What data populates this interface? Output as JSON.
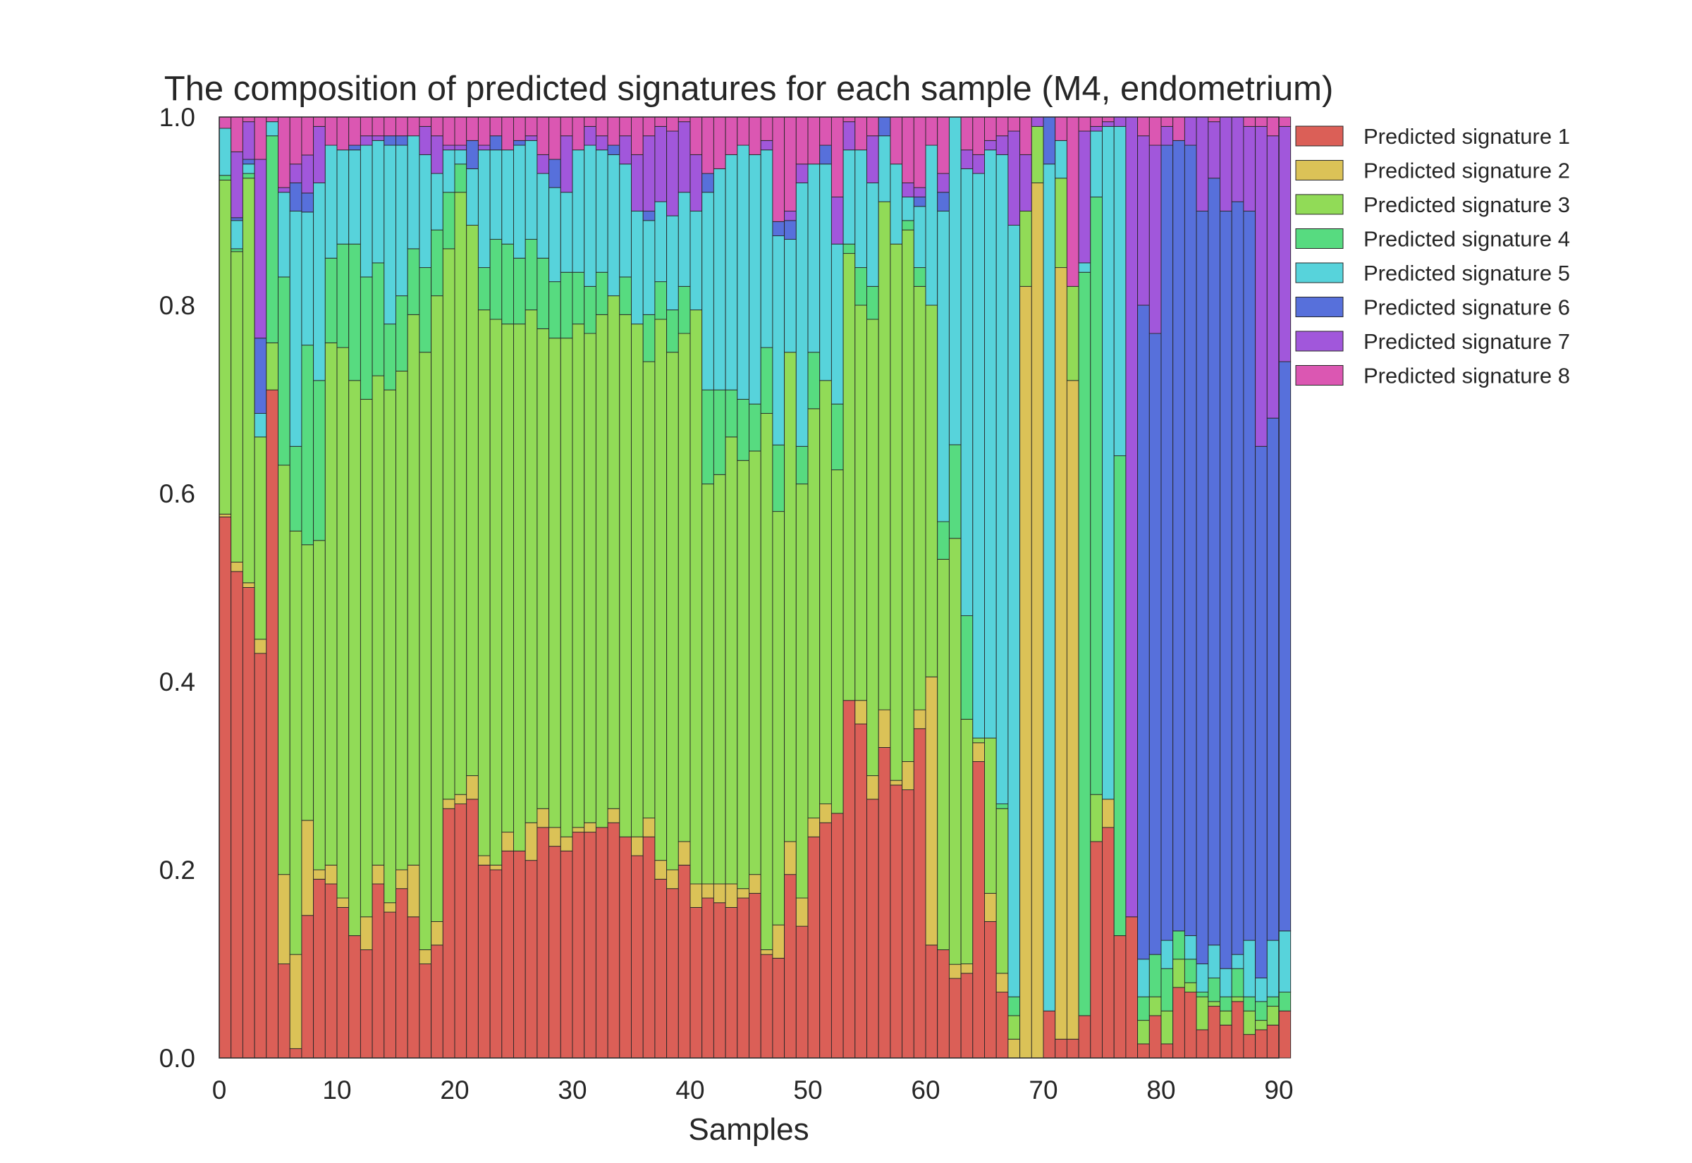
{
  "chart_data": {
    "type": "bar",
    "stacked": true,
    "normalized": true,
    "title": "The composition of predicted signatures for each sample (M4, endometrium)",
    "xlabel": "Samples",
    "ylabel": "",
    "xlim": [
      0,
      90
    ],
    "ylim": [
      0,
      1
    ],
    "xticks": [
      "0",
      "10",
      "20",
      "30",
      "40",
      "50",
      "60",
      "70",
      "80",
      "90"
    ],
    "yticks": [
      "0.0",
      "0.2",
      "0.4",
      "0.6",
      "0.8",
      "1.0"
    ],
    "grid": false,
    "legend_position": "outside-top-right",
    "series": [
      {
        "name": "Predicted signature 1",
        "color": "#db5f57"
      },
      {
        "name": "Predicted signature 2",
        "color": "#dbc257"
      },
      {
        "name": "Predicted signature 3",
        "color": "#91db57"
      },
      {
        "name": "Predicted signature 4",
        "color": "#57db80"
      },
      {
        "name": "Predicted signature 5",
        "color": "#57d3db"
      },
      {
        "name": "Predicted signature 6",
        "color": "#5770db"
      },
      {
        "name": "Predicted signature 7",
        "color": "#a157db"
      },
      {
        "name": "Predicted signature 8",
        "color": "#db57b2"
      }
    ],
    "samples": [
      [
        0.575,
        0.003,
        0.355,
        0.005,
        0.05,
        0,
        0,
        0.012
      ],
      [
        0.517,
        0.01,
        0.33,
        0.003,
        0.03,
        0.003,
        0.07,
        0.037
      ],
      [
        0.5,
        0.005,
        0.43,
        0.005,
        0.01,
        0.005,
        0.04,
        0.005
      ],
      [
        0.43,
        0.015,
        0.215,
        0.0,
        0.025,
        0.08,
        0.19,
        0.045
      ],
      [
        0.71,
        0,
        0.05,
        0.22,
        0.015,
        0,
        0,
        0.005
      ],
      [
        0.1,
        0.095,
        0.435,
        0.2,
        0.09,
        0.0,
        0.005,
        0.075
      ],
      [
        0.01,
        0.1,
        0.45,
        0.09,
        0.25,
        0.03,
        0.02,
        0.05
      ],
      [
        0.15,
        0.1,
        0.29,
        0.21,
        0.14,
        0.02,
        0.04,
        0.04
      ],
      [
        0.19,
        0.01,
        0.35,
        0.17,
        0.21,
        0.0,
        0.06,
        0.01
      ],
      [
        0.185,
        0.02,
        0.555,
        0.09,
        0.12,
        0.0,
        0.0,
        0.03
      ],
      [
        0.16,
        0.01,
        0.585,
        0.11,
        0.1,
        0.0,
        0.0,
        0.035
      ],
      [
        0.13,
        0.0,
        0.59,
        0.145,
        0.1,
        0.005,
        0.0,
        0.03
      ],
      [
        0.115,
        0.035,
        0.55,
        0.13,
        0.14,
        0.0,
        0.01,
        0.02
      ],
      [
        0.185,
        0.02,
        0.52,
        0.12,
        0.13,
        0.0,
        0.005,
        0.02
      ],
      [
        0.155,
        0.01,
        0.545,
        0.07,
        0.19,
        0.01,
        0.0,
        0.02
      ],
      [
        0.18,
        0.02,
        0.53,
        0.08,
        0.16,
        0.01,
        0.0,
        0.02
      ],
      [
        0.15,
        0.055,
        0.585,
        0.07,
        0.12,
        0.0,
        0.0,
        0.02
      ],
      [
        0.1,
        0.015,
        0.635,
        0.09,
        0.12,
        0.0,
        0.03,
        0.01
      ],
      [
        0.12,
        0.025,
        0.665,
        0.07,
        0.06,
        0.0,
        0.04,
        0.02
      ],
      [
        0.265,
        0.01,
        0.585,
        0.06,
        0.045,
        0.0,
        0.005,
        0.03
      ],
      [
        0.27,
        0.01,
        0.64,
        0.03,
        0.015,
        0.0,
        0.005,
        0.03
      ],
      [
        0.275,
        0.025,
        0.585,
        0.0,
        0.06,
        0.03,
        0.0,
        0.025
      ],
      [
        0.205,
        0.01,
        0.58,
        0.045,
        0.125,
        0.0,
        0.005,
        0.03
      ],
      [
        0.2,
        0.005,
        0.58,
        0.085,
        0.095,
        0.015,
        0.0,
        0.02
      ],
      [
        0.22,
        0.02,
        0.54,
        0.085,
        0.1,
        0.0,
        0.0,
        0.035
      ],
      [
        0.22,
        0.0,
        0.56,
        0.07,
        0.12,
        0.005,
        0.0,
        0.025
      ],
      [
        0.21,
        0.04,
        0.545,
        0.075,
        0.105,
        0.0,
        0.005,
        0.02
      ],
      [
        0.245,
        0.02,
        0.51,
        0.075,
        0.09,
        0.0,
        0.02,
        0.04
      ],
      [
        0.225,
        0.02,
        0.52,
        0.06,
        0.1,
        0.03,
        0.0,
        0.045
      ],
      [
        0.22,
        0.015,
        0.53,
        0.07,
        0.085,
        0.0,
        0.06,
        0.02
      ],
      [
        0.24,
        0.005,
        0.535,
        0.055,
        0.13,
        0.0,
        0.0,
        0.035
      ],
      [
        0.24,
        0.01,
        0.52,
        0.05,
        0.15,
        0.0,
        0.02,
        0.01
      ],
      [
        0.245,
        0.0,
        0.545,
        0.045,
        0.13,
        0.0,
        0.015,
        0.02
      ],
      [
        0.25,
        0.015,
        0.545,
        0.0,
        0.15,
        0.01,
        0.0,
        0.03
      ],
      [
        0.235,
        0.0,
        0.555,
        0.04,
        0.12,
        0.0,
        0.03,
        0.02
      ],
      [
        0.215,
        0.02,
        0.545,
        0.0,
        0.12,
        0.0,
        0.06,
        0.04
      ],
      [
        0.235,
        0.02,
        0.485,
        0.05,
        0.1,
        0.01,
        0.08,
        0.02
      ],
      [
        0.19,
        0.02,
        0.575,
        0.04,
        0.085,
        0.0,
        0.08,
        0.01
      ],
      [
        0.18,
        0.02,
        0.55,
        0.045,
        0.1,
        0.0,
        0.09,
        0.015
      ],
      [
        0.205,
        0.025,
        0.54,
        0.05,
        0.1,
        0.0,
        0.075,
        0.005
      ],
      [
        0.16,
        0.025,
        0.61,
        0.0,
        0.105,
        0.0,
        0.06,
        0.04
      ],
      [
        0.17,
        0.015,
        0.425,
        0.1,
        0.21,
        0.02,
        0.0,
        0.06
      ],
      [
        0.165,
        0.02,
        0.435,
        0.09,
        0.235,
        0.0,
        0.0,
        0.055
      ],
      [
        0.16,
        0.025,
        0.475,
        0.05,
        0.25,
        0.0,
        0.0,
        0.04
      ],
      [
        0.17,
        0.01,
        0.455,
        0.065,
        0.27,
        0.0,
        0.0,
        0.03
      ],
      [
        0.175,
        0.02,
        0.45,
        0.05,
        0.265,
        0.0,
        0.0,
        0.04
      ],
      [
        0.11,
        0.005,
        0.57,
        0.07,
        0.21,
        0.0,
        0.01,
        0.025
      ],
      [
        0.105,
        0.035,
        0.435,
        0.07,
        0.22,
        0.015,
        0.0,
        0.11
      ],
      [
        0.195,
        0.035,
        0.52,
        0.0,
        0.12,
        0.02,
        0.01,
        0.1
      ],
      [
        0.14,
        0.03,
        0.44,
        0.04,
        0.28,
        0.0,
        0.02,
        0.05
      ],
      [
        0.235,
        0.02,
        0.435,
        0.06,
        0.2,
        0.0,
        0.0,
        0.05
      ],
      [
        0.25,
        0.02,
        0.45,
        0.0,
        0.23,
        0.02,
        0.0,
        0.03
      ],
      [
        0.26,
        0.0,
        0.365,
        0.07,
        0.17,
        0.0,
        0.05,
        0.085
      ],
      [
        0.38,
        0.0,
        0.475,
        0.01,
        0.1,
        0.0,
        0.03,
        0.005
      ],
      [
        0.355,
        0.025,
        0.42,
        0.04,
        0.125,
        0.0,
        0.0,
        0.035
      ],
      [
        0.275,
        0.025,
        0.485,
        0.035,
        0.11,
        0.0,
        0.05,
        0.02
      ],
      [
        0.33,
        0.04,
        0.54,
        0.0,
        0.07,
        0.02,
        0.0,
        0.0
      ],
      [
        0.29,
        0.005,
        0.57,
        0.0,
        0.085,
        0.0,
        0.0,
        0.05
      ],
      [
        0.285,
        0.03,
        0.565,
        0.01,
        0.025,
        0.0,
        0.015,
        0.07
      ],
      [
        0.35,
        0.02,
        0.45,
        0.02,
        0.065,
        0.01,
        0.01,
        0.075
      ],
      [
        0.12,
        0.285,
        0.395,
        0.0,
        0.17,
        0.0,
        0.0,
        0.03
      ],
      [
        0.115,
        0.0,
        0.415,
        0.04,
        0.33,
        0.02,
        0.02,
        0.06
      ],
      [
        0.085,
        0.015,
        0.455,
        0.1,
        0.35,
        0.0,
        0.0,
        0.0
      ],
      [
        0.09,
        0.01,
        0.26,
        0.11,
        0.475,
        0.0,
        0.02,
        0.035
      ],
      [
        0.315,
        0.02,
        0.005,
        0.0,
        0.6,
        0.0,
        0.02,
        0.04
      ],
      [
        0.145,
        0.03,
        0.165,
        0.0,
        0.625,
        0.0,
        0.01,
        0.025
      ],
      [
        0.07,
        0.02,
        0.175,
        0.005,
        0.69,
        0.0,
        0.02,
        0.02
      ],
      [
        0.0,
        0.02,
        0.025,
        0.02,
        0.82,
        0.0,
        0.1,
        0.015
      ],
      [
        0.0,
        0.82,
        0.08,
        0.0,
        0.0,
        0.0,
        0.06,
        0.04
      ],
      [
        0.0,
        0.93,
        0.06,
        0.0,
        0.0,
        0.0,
        0.01,
        0.0
      ],
      [
        0.05,
        0.0,
        0.0,
        0.0,
        0.9,
        0.05,
        0.0,
        0.0
      ],
      [
        0.02,
        0.82,
        0.095,
        0.0,
        0.04,
        0.0,
        0.0,
        0.025
      ],
      [
        0.02,
        0.7,
        0.1,
        0.0,
        0.0,
        0.0,
        0.0,
        0.18
      ],
      [
        0.045,
        0.0,
        0.0,
        0.79,
        0.01,
        0.0,
        0.14,
        0.015
      ],
      [
        0.23,
        0.0,
        0.05,
        0.635,
        0.07,
        0.0,
        0.005,
        0.01
      ],
      [
        0.245,
        0.03,
        0.0,
        0.0,
        0.715,
        0.0,
        0.005,
        0.005
      ],
      [
        0.13,
        0.0,
        0.0,
        0.51,
        0.35,
        0.0,
        0.01,
        0.0
      ],
      [
        0.15,
        0.0,
        0.0,
        0.0,
        0.0,
        0.0,
        0.85,
        0.0
      ],
      [
        0.015,
        0.0,
        0.025,
        0.025,
        0.04,
        0.695,
        0.18,
        0.02
      ],
      [
        0.045,
        0.0,
        0.02,
        0.045,
        0.0,
        0.66,
        0.2,
        0.03
      ],
      [
        0.015,
        0.0,
        0.035,
        0.045,
        0.03,
        0.845,
        0.02,
        0.01
      ],
      [
        0.075,
        0.0,
        0.03,
        0.03,
        0.0,
        0.84,
        0.0,
        0.025
      ],
      [
        0.07,
        0.0,
        0.01,
        0.025,
        0.025,
        0.84,
        0.03,
        0.0
      ],
      [
        0.03,
        0.0,
        0.035,
        0.005,
        0.03,
        0.8,
        0.1,
        0.0
      ],
      [
        0.055,
        0.0,
        0.005,
        0.025,
        0.035,
        0.815,
        0.06,
        0.005
      ],
      [
        0.035,
        0.0,
        0.015,
        0.015,
        0.03,
        0.805,
        0.1,
        0.0
      ],
      [
        0.06,
        0.0,
        0.005,
        0.03,
        0.015,
        0.8,
        0.09,
        0.0
      ],
      [
        0.025,
        0.0,
        0.025,
        0.015,
        0.06,
        0.775,
        0.09,
        0.01
      ],
      [
        0.03,
        0.0,
        0.01,
        0.02,
        0.025,
        0.565,
        0.34,
        0.01
      ],
      [
        0.035,
        0.0,
        0.02,
        0.01,
        0.06,
        0.555,
        0.3,
        0.02
      ],
      [
        0.05,
        0.0,
        0.0,
        0.02,
        0.065,
        0.605,
        0.25,
        0.01
      ]
    ]
  }
}
